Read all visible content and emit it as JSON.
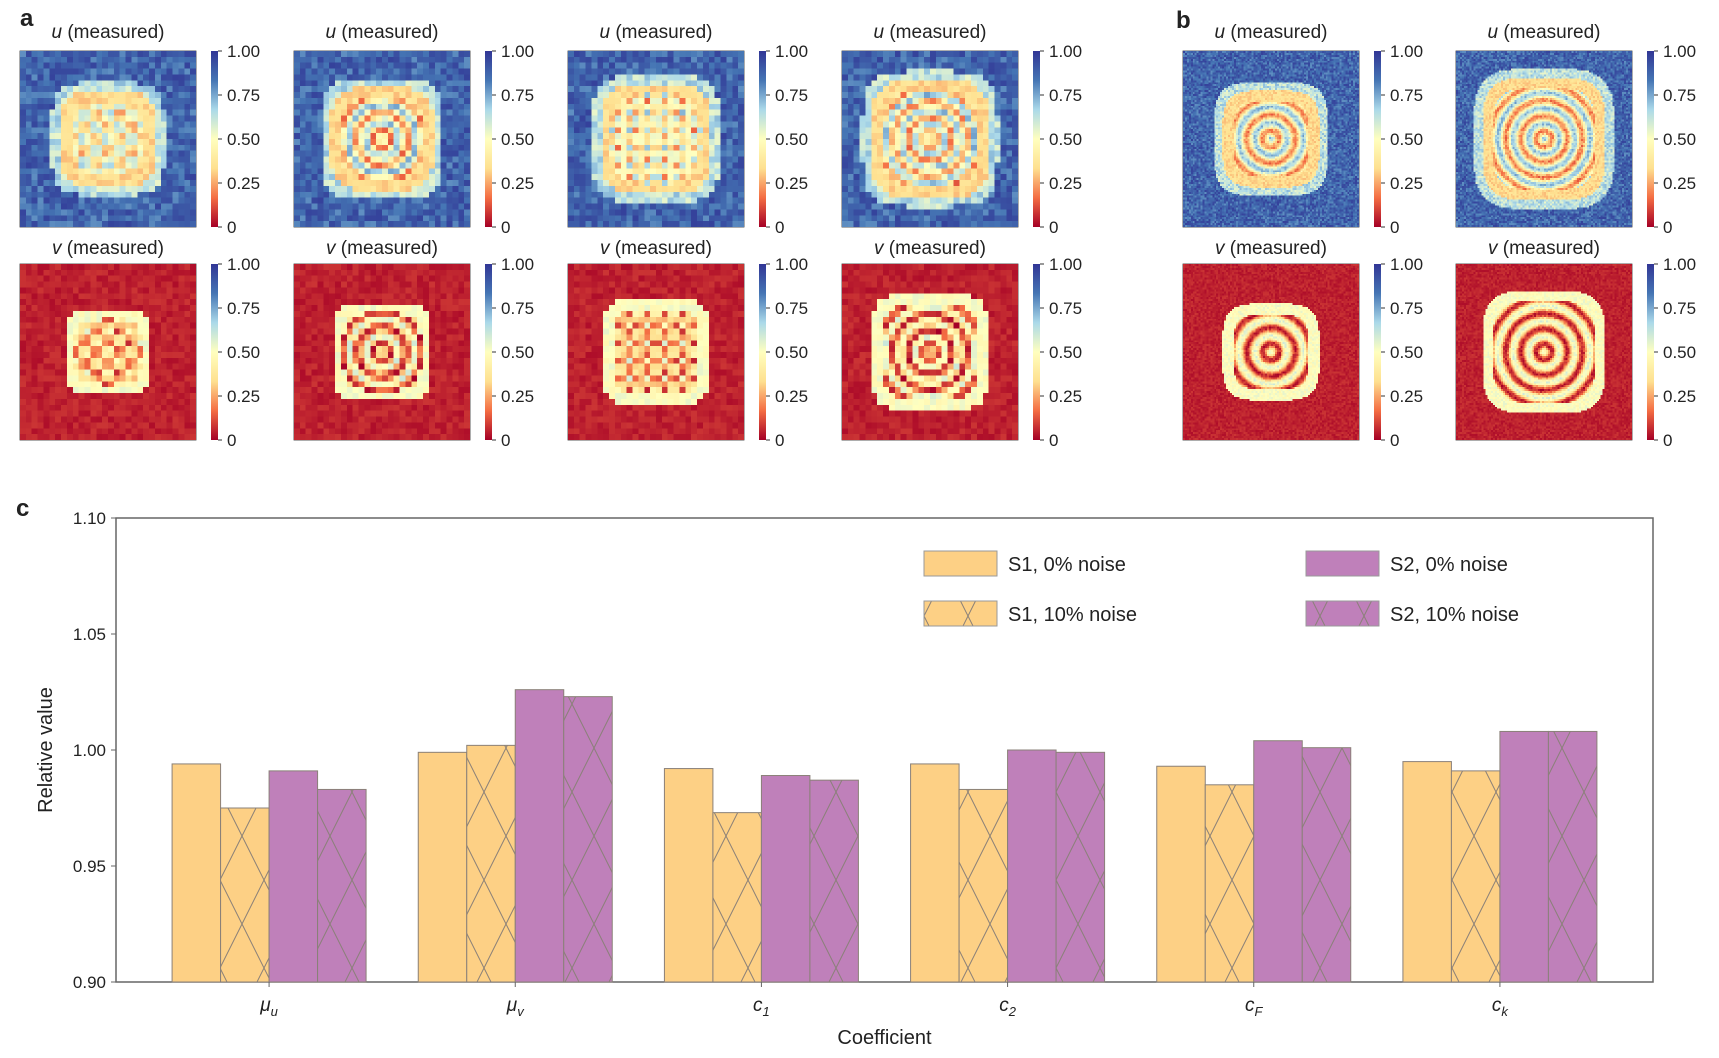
{
  "panels": {
    "a": {
      "label": "a",
      "u_title_var": "u",
      "v_title_var": "v",
      "title_suffix": " (measured)",
      "columns": 4,
      "colorbar_ticks": [
        "1.00",
        "0.75",
        "0.50",
        "0.25",
        "0"
      ]
    },
    "b": {
      "label": "b",
      "u_title_var": "u",
      "v_title_var": "v",
      "title_suffix": " (measured)",
      "columns": 2,
      "colorbar_ticks": [
        "1.00",
        "0.75",
        "0.50",
        "0.25",
        "0"
      ]
    },
    "c": {
      "label": "c"
    }
  },
  "colormap": {
    "name": "RdYlBu",
    "stops": [
      "#a50026",
      "#f46d43",
      "#fee090",
      "#ffffbf",
      "#abd9e9",
      "#4575b4",
      "#313695"
    ],
    "range": [
      0,
      1
    ]
  },
  "chart_data": {
    "type": "bar",
    "xlabel": "Coefficient",
    "ylabel": "Relative value",
    "ylim": [
      0.9,
      1.1
    ],
    "yticks": [
      "0.90",
      "0.95",
      "1.00",
      "1.05",
      "1.10"
    ],
    "categories": [
      {
        "base": "μ",
        "sub": "u"
      },
      {
        "base": "μ",
        "sub": "v"
      },
      {
        "base": "c",
        "sub": "1"
      },
      {
        "base": "c",
        "sub": "2"
      },
      {
        "base": "c",
        "sub": "F"
      },
      {
        "base": "c",
        "sub": "k"
      }
    ],
    "legend_position": "top-right",
    "grid": false,
    "series": [
      {
        "name": "S1, 0% noise",
        "color": "#fdd085",
        "hatch": false,
        "values": [
          0.994,
          0.999,
          0.992,
          0.994,
          0.993,
          0.995
        ]
      },
      {
        "name": "S1, 10% noise",
        "color": "#fdd085",
        "hatch": true,
        "values": [
          0.975,
          1.002,
          0.973,
          0.983,
          0.985,
          0.991
        ]
      },
      {
        "name": "S2, 0% noise",
        "color": "#bf80ba",
        "hatch": false,
        "values": [
          0.991,
          1.026,
          0.989,
          1.0,
          1.004,
          1.008
        ]
      },
      {
        "name": "S2, 10% noise",
        "color": "#bf80ba",
        "hatch": true,
        "values": [
          0.983,
          1.023,
          0.987,
          0.999,
          1.001,
          1.008
        ]
      }
    ]
  }
}
